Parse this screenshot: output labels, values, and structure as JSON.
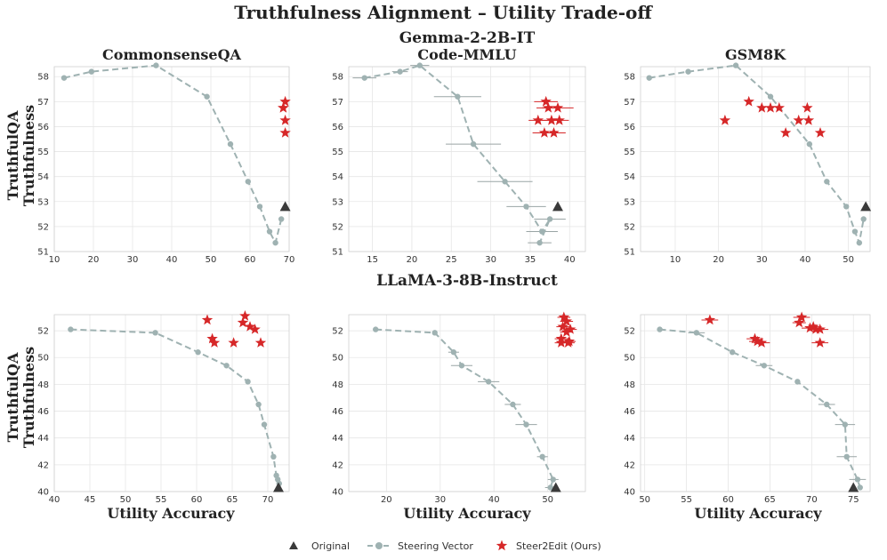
{
  "title": "Truthfulness Alignment – Utility Trade-off",
  "row_titles": [
    "Gemma-2-2B-IT",
    "LLaMA-3-8B-Instruct"
  ],
  "ylabel_line1": "TruthfulQA",
  "ylabel_line2": "Truthfulness",
  "xlabel": "Utility Accuracy",
  "legend": [
    {
      "key": "original",
      "label": "Original",
      "color": "#3a3a3a",
      "marker": "triangle"
    },
    {
      "key": "steering",
      "label": "Steering Vector",
      "color": "#9fb2b2",
      "marker": "circle-dashed-line"
    },
    {
      "key": "steer2edit",
      "label": "Steer2Edit (Ours)",
      "color": "#d62728",
      "marker": "star"
    }
  ],
  "chart_data": [
    {
      "type": "line",
      "title": "CommonsenseQA",
      "row": 0,
      "col": 0,
      "xlim": [
        10,
        70
      ],
      "ylim": [
        51,
        58.4
      ],
      "xticks": [
        10,
        20,
        30,
        40,
        50,
        60,
        70
      ],
      "yticks": [
        51,
        52,
        53,
        54,
        55,
        56,
        57,
        58
      ],
      "steering": {
        "x": [
          12.5,
          19.5,
          36,
          49,
          55,
          59.5,
          62.5,
          65,
          66.5,
          68
        ],
        "y": [
          57.95,
          58.2,
          58.45,
          57.2,
          55.3,
          53.8,
          52.8,
          51.8,
          51.35,
          52.3
        ],
        "xerr": [
          0,
          0,
          0,
          0,
          0,
          0,
          0,
          0,
          0,
          0
        ]
      },
      "steer2edit": {
        "x": [
          69,
          68.5,
          68.5,
          69,
          69
        ],
        "y": [
          57.0,
          56.75,
          56.75,
          56.25,
          55.75
        ],
        "xerr": [
          0,
          0,
          0,
          0,
          0
        ]
      },
      "original": {
        "x": 69,
        "y": 52.8
      }
    },
    {
      "type": "line",
      "title": "Code-MMLU",
      "row": 0,
      "col": 1,
      "xlim": [
        12,
        42
      ],
      "ylim": [
        51,
        58.4
      ],
      "xticks": [
        15,
        20,
        25,
        30,
        35,
        40
      ],
      "yticks": [
        51,
        52,
        53,
        54,
        55,
        56,
        57,
        58
      ],
      "steering": {
        "x": [
          14,
          18.5,
          21,
          25.8,
          27.8,
          31.8,
          34.5,
          36.5,
          37.5,
          36.2
        ],
        "y": [
          57.95,
          58.2,
          58.45,
          57.2,
          55.3,
          53.8,
          52.8,
          51.8,
          52.3,
          51.35
        ],
        "xerr": [
          1.5,
          1.0,
          1.2,
          3.0,
          3.5,
          3.5,
          2.5,
          2.0,
          2.0,
          1.5
        ]
      },
      "steer2edit": {
        "x": [
          37,
          37.3,
          38.5,
          37.7,
          38.7,
          36,
          36.8,
          38
        ],
        "y": [
          57.0,
          56.75,
          56.75,
          56.25,
          56.25,
          56.25,
          55.75,
          55.75
        ],
        "xerr": [
          1.5,
          1.5,
          2.0,
          1.2,
          1.2,
          1.2,
          1.5,
          1.5
        ]
      },
      "original": {
        "x": 38.5,
        "y": 52.8
      }
    },
    {
      "type": "line",
      "title": "GSM8K",
      "row": 0,
      "col": 2,
      "xlim": [
        2,
        55
      ],
      "ylim": [
        51,
        58.4
      ],
      "xticks": [
        10,
        20,
        30,
        40,
        50
      ],
      "yticks": [
        51,
        52,
        53,
        54,
        55,
        56,
        57,
        58
      ],
      "steering": {
        "x": [
          4,
          13,
          24,
          32,
          41,
          45,
          49.5,
          51.5,
          52.5,
          53.5
        ],
        "y": [
          57.95,
          58.2,
          58.45,
          57.2,
          55.3,
          53.8,
          52.8,
          51.8,
          51.35,
          52.3
        ],
        "xerr": [
          0,
          0,
          0,
          0,
          0,
          0,
          0,
          0,
          0,
          0
        ]
      },
      "steer2edit": {
        "x": [
          27,
          30,
          32,
          34,
          40.5,
          21.5,
          38.5,
          40.8,
          35.5,
          43.5
        ],
        "y": [
          57.0,
          56.75,
          56.75,
          56.75,
          56.75,
          56.25,
          56.25,
          56.25,
          55.75,
          55.75
        ],
        "xerr": [
          0,
          0,
          0,
          0,
          0,
          0,
          0,
          0,
          0,
          0
        ]
      },
      "original": {
        "x": 54,
        "y": 52.8
      }
    },
    {
      "type": "line",
      "title": "",
      "row": 1,
      "col": 0,
      "xlim": [
        40,
        73
      ],
      "ylim": [
        40,
        53.2
      ],
      "xticks": [
        40,
        45,
        50,
        55,
        60,
        65,
        70
      ],
      "yticks": [
        40,
        42,
        44,
        46,
        48,
        50,
        52
      ],
      "steering": {
        "x": [
          42.3,
          54.2,
          60.2,
          64.2,
          67.2,
          68.7,
          69.5,
          70.8,
          71.2,
          71.4,
          71.6
        ],
        "y": [
          52.1,
          51.85,
          50.4,
          49.4,
          48.2,
          46.5,
          45.0,
          42.6,
          41.2,
          40.9,
          40.6
        ],
        "xerr": [
          0,
          0,
          0,
          0,
          0,
          0,
          0,
          0,
          0,
          0,
          0
        ]
      },
      "steer2edit": {
        "x": [
          61.5,
          66.8,
          66.5,
          67.5,
          68.2,
          62.2,
          62.5,
          65.2,
          69
        ],
        "y": [
          52.8,
          53.1,
          52.6,
          52.3,
          52.1,
          51.4,
          51.1,
          51.1,
          51.1
        ],
        "xerr": [
          0,
          0,
          0,
          0,
          0,
          0,
          0,
          0,
          0
        ]
      },
      "original": {
        "x": 71.5,
        "y": 40.3
      }
    },
    {
      "type": "line",
      "title": "",
      "row": 1,
      "col": 1,
      "xlim": [
        13,
        57
      ],
      "ylim": [
        40,
        53.2
      ],
      "xticks": [
        20,
        30,
        40,
        50
      ],
      "yticks": [
        40,
        42,
        44,
        46,
        48,
        50,
        52
      ],
      "steering": {
        "x": [
          18,
          29,
          32.5,
          34,
          39,
          43.5,
          46,
          49,
          51,
          50.5
        ],
        "y": [
          52.1,
          51.85,
          50.4,
          49.4,
          48.2,
          46.5,
          45.0,
          42.6,
          40.9,
          40.3
        ],
        "xerr": [
          0,
          0,
          1.0,
          2.0,
          2.0,
          1.5,
          2.0,
          1.0,
          1.0,
          1.0
        ]
      },
      "steer2edit": {
        "x": [
          53,
          53.5,
          52.8,
          54.2,
          53.5,
          52.5,
          54,
          52.5,
          53.8
        ],
        "y": [
          53.0,
          52.7,
          52.3,
          52.1,
          51.9,
          51.4,
          51.2,
          51.1,
          51.1
        ],
        "xerr": [
          1.2,
          1.2,
          1.2,
          1.2,
          1.2,
          1.2,
          1.2,
          1.2,
          1.2
        ]
      },
      "original": {
        "x": 51.5,
        "y": 40.3
      }
    },
    {
      "type": "line",
      "title": "",
      "row": 1,
      "col": 2,
      "xlim": [
        49.5,
        77
      ],
      "ylim": [
        40,
        53.2
      ],
      "xticks": [
        50,
        55,
        60,
        65,
        70,
        75
      ],
      "yticks": [
        40,
        42,
        44,
        46,
        48,
        50,
        52
      ],
      "steering": {
        "x": [
          51.8,
          56.2,
          60.5,
          64.3,
          68.3,
          71.8,
          74,
          74.2,
          75.5,
          75.8
        ],
        "y": [
          52.1,
          51.85,
          50.4,
          49.4,
          48.2,
          46.5,
          45.0,
          42.6,
          40.9,
          40.3
        ],
        "xerr": [
          0,
          1.0,
          0,
          1.0,
          0,
          1.0,
          1.2,
          1.2,
          1.0,
          0
        ]
      },
      "steer2edit": {
        "x": [
          57.8,
          68.8,
          68.5,
          70.2,
          70.5,
          69.8,
          71,
          63.2,
          63.5,
          64,
          71
        ],
        "y": [
          52.8,
          53.0,
          52.6,
          52.3,
          52.1,
          52.2,
          52.1,
          51.4,
          51.2,
          51.1,
          51.1
        ],
        "xerr": [
          1.0,
          1.0,
          0.8,
          1.0,
          1.0,
          1.0,
          1.0,
          1.0,
          1.0,
          1.0,
          1.0
        ]
      },
      "original": {
        "x": 75,
        "y": 40.3
      }
    }
  ]
}
